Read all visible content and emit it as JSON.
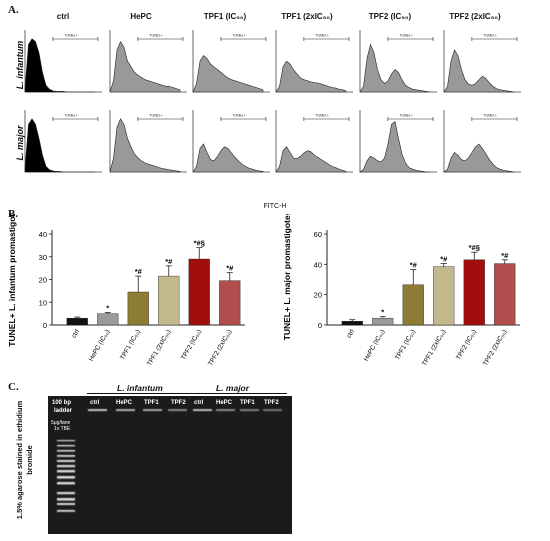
{
  "panels": {
    "a": "A.",
    "b": "B.",
    "c": "C."
  },
  "flow": {
    "columns": [
      "ctrl",
      "HePC",
      "TPF1 (IC₅₀)",
      "TPF1 (2xIC₅₀)",
      "TPF2 (IC₅₀)",
      "TPF2 (2xIC₅₀)"
    ],
    "rows": [
      "L. infantum",
      "L. major"
    ],
    "gate_label": "TUNEL+",
    "x_axis_label": "FITC-H",
    "colors": {
      "ctrl_fill": "#000000",
      "treated_fill": "#999999"
    },
    "histograms": {
      "L. infantum": [
        [
          0.05,
          0.85,
          0.95,
          0.9,
          0.7,
          0.35,
          0.12,
          0.05,
          0.02,
          0.01,
          0.01,
          0.01,
          0.0,
          0.0,
          0.0,
          0.0,
          0.0,
          0.0,
          0.0,
          0.0,
          0.0
        ],
        [
          0.0,
          0.2,
          0.75,
          0.9,
          0.8,
          0.55,
          0.45,
          0.35,
          0.3,
          0.26,
          0.22,
          0.2,
          0.18,
          0.16,
          0.14,
          0.12,
          0.1,
          0.1,
          0.08,
          0.06,
          0.04
        ],
        [
          0.0,
          0.15,
          0.55,
          0.65,
          0.6,
          0.5,
          0.45,
          0.4,
          0.35,
          0.3,
          0.25,
          0.22,
          0.2,
          0.18,
          0.16,
          0.14,
          0.12,
          0.1,
          0.08,
          0.06,
          0.04
        ],
        [
          0.0,
          0.1,
          0.45,
          0.55,
          0.5,
          0.4,
          0.32,
          0.25,
          0.22,
          0.2,
          0.18,
          0.17,
          0.16,
          0.14,
          0.12,
          0.1,
          0.08,
          0.07,
          0.05,
          0.04,
          0.02
        ],
        [
          0.0,
          0.1,
          0.6,
          0.85,
          0.7,
          0.4,
          0.22,
          0.15,
          0.2,
          0.32,
          0.4,
          0.35,
          0.22,
          0.12,
          0.08,
          0.05,
          0.04,
          0.03,
          0.02,
          0.01,
          0.0
        ],
        [
          0.0,
          0.1,
          0.55,
          0.75,
          0.65,
          0.4,
          0.22,
          0.14,
          0.12,
          0.15,
          0.22,
          0.28,
          0.24,
          0.16,
          0.1,
          0.06,
          0.04,
          0.03,
          0.02,
          0.01,
          0.0
        ]
      ],
      "L. major": [
        [
          0.05,
          0.85,
          0.95,
          0.85,
          0.6,
          0.3,
          0.1,
          0.04,
          0.02,
          0.01,
          0.01,
          0.0,
          0.0,
          0.0,
          0.0,
          0.0,
          0.0,
          0.0,
          0.0,
          0.0,
          0.0
        ],
        [
          0.0,
          0.25,
          0.8,
          0.95,
          0.85,
          0.6,
          0.45,
          0.32,
          0.25,
          0.2,
          0.16,
          0.14,
          0.12,
          0.1,
          0.08,
          0.06,
          0.05,
          0.04,
          0.03,
          0.02,
          0.01
        ],
        [
          0.0,
          0.1,
          0.42,
          0.5,
          0.35,
          0.22,
          0.2,
          0.28,
          0.38,
          0.45,
          0.42,
          0.34,
          0.26,
          0.2,
          0.14,
          0.1,
          0.07,
          0.05,
          0.03,
          0.02,
          0.01
        ],
        [
          0.0,
          0.1,
          0.38,
          0.45,
          0.35,
          0.25,
          0.24,
          0.28,
          0.34,
          0.38,
          0.36,
          0.3,
          0.26,
          0.22,
          0.18,
          0.14,
          0.1,
          0.08,
          0.05,
          0.03,
          0.01
        ],
        [
          0.0,
          0.05,
          0.2,
          0.28,
          0.25,
          0.2,
          0.18,
          0.25,
          0.5,
          0.85,
          0.9,
          0.6,
          0.32,
          0.16,
          0.08,
          0.05,
          0.03,
          0.02,
          0.01,
          0.0,
          0.0
        ],
        [
          0.0,
          0.05,
          0.25,
          0.35,
          0.3,
          0.22,
          0.2,
          0.25,
          0.35,
          0.45,
          0.5,
          0.42,
          0.32,
          0.22,
          0.14,
          0.08,
          0.05,
          0.03,
          0.02,
          0.01,
          0.0
        ]
      ]
    }
  },
  "chart_data": [
    {
      "type": "bar",
      "ylabel": "TUNEL+ L. infantum promastigotes",
      "ylim": [
        0,
        40
      ],
      "yticks": [
        0,
        10,
        20,
        30,
        40
      ],
      "categories": [
        "ctrl",
        "HePC (IC₅₀)",
        "TPF1 (IC₅₀)",
        "TPF1 (2xIC₅₀)",
        "TPF2 (IC₅₀)",
        "TPF2 (2xIC₅₀)"
      ],
      "values": [
        3,
        5,
        14.5,
        21.5,
        29,
        19.5
      ],
      "errors": [
        0.5,
        0.5,
        7,
        4.5,
        5,
        3.5
      ],
      "annotations": [
        "",
        "*",
        "*#",
        "*#",
        "*#§",
        "*#"
      ],
      "colors": [
        "#111111",
        "#9a9a9a",
        "#8d7c33",
        "#c3b98c",
        "#a20d0d",
        "#b04d4d"
      ]
    },
    {
      "type": "bar",
      "ylabel": "TUNEL+ L. major promastigotes",
      "ylim": [
        0,
        60
      ],
      "yticks": [
        0,
        20,
        40,
        60
      ],
      "categories": [
        "ctrl",
        "HePC (IC₅₀)",
        "TPF1 (IC₅₀)",
        "TPF1 (2xIC₅₀)",
        "TPF2 (IC₅₀)",
        "TPF2 (2xIC₅₀)"
      ],
      "values": [
        2.5,
        4.5,
        26.5,
        38.5,
        43,
        40.5
      ],
      "errors": [
        1,
        1,
        10,
        2,
        5,
        2.5
      ],
      "annotations": [
        "",
        "*",
        "*#",
        "*#",
        "*#§",
        "*#"
      ],
      "colors": [
        "#111111",
        "#9a9a9a",
        "#8d7c33",
        "#c3b98c",
        "#a20d0d",
        "#b04d4d"
      ]
    }
  ],
  "gel": {
    "groups": [
      "L. infantum",
      "L. major"
    ],
    "ladder_label_1": "100 bp",
    "ladder_label_2": "ladder",
    "load_label_1": "5μg/lane",
    "load_label_2": "1x TBE",
    "lanes_infantum": [
      "ctrl",
      "HePC",
      "TPF1",
      "TPF2"
    ],
    "lanes_major": [
      "ctrl",
      "HePC",
      "TPF1",
      "TPF2"
    ],
    "side_label": "1.5% agarose stained in ethidium bromide"
  }
}
